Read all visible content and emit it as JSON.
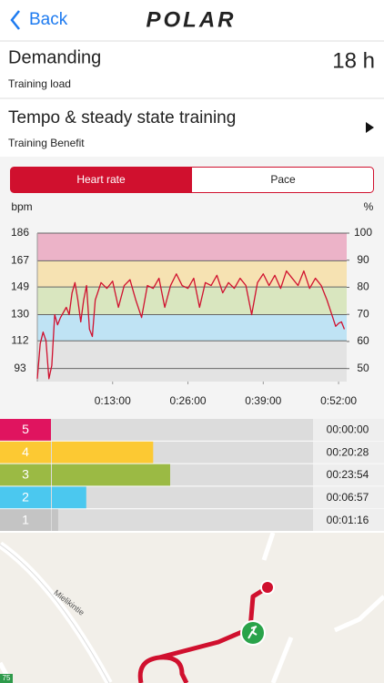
{
  "header": {
    "back": "Back",
    "logo": "POLAR"
  },
  "summary": {
    "load_title": "Demanding",
    "load_value": "18 h",
    "load_label": "Training load",
    "benefit_title": "Tempo & steady state training",
    "benefit_label": "Training Benefit"
  },
  "tabs": [
    "Heart rate",
    "Pace"
  ],
  "chart_data": {
    "type": "line",
    "y_label": "bpm",
    "y2_label": "%",
    "color": "#d0102e",
    "x": [
      0,
      0.5,
      1,
      1.5,
      2,
      2.5,
      3,
      3.5,
      4,
      5,
      5.5,
      6,
      6.5,
      7,
      7.5,
      8,
      8.5,
      9,
      9.5,
      10,
      11,
      12,
      13,
      14,
      15,
      16,
      17,
      18,
      19,
      20,
      21,
      22,
      23,
      24,
      25,
      26,
      27,
      28,
      29,
      30,
      31,
      32,
      33,
      34,
      35,
      36,
      37,
      38,
      39,
      40,
      41,
      42,
      43,
      44,
      45,
      46,
      47,
      48,
      49,
      50,
      51,
      51.5,
      52,
      52.5,
      53
    ],
    "values": [
      86,
      110,
      118,
      112,
      86,
      95,
      130,
      123,
      128,
      135,
      130,
      145,
      152,
      140,
      125,
      140,
      150,
      120,
      115,
      140,
      152,
      148,
      153,
      135,
      150,
      154,
      140,
      128,
      150,
      148,
      155,
      135,
      150,
      158,
      150,
      148,
      155,
      135,
      152,
      150,
      157,
      145,
      152,
      148,
      155,
      150,
      130,
      152,
      158,
      150,
      157,
      148,
      160,
      155,
      150,
      160,
      148,
      155,
      150,
      140,
      128,
      122,
      124,
      125,
      120
    ],
    "xlim": [
      0,
      53.4
    ],
    "xticks": [
      {
        "value": 13,
        "label": "0:13:00"
      },
      {
        "value": 26,
        "label": "0:26:00"
      },
      {
        "value": 39,
        "label": "0:39:00"
      },
      {
        "value": 52,
        "label": "0:52:00"
      }
    ],
    "ylim": [
      84,
      186
    ],
    "yticks": [
      93,
      112,
      130,
      149,
      167,
      186
    ],
    "y2lim": [
      45.2,
      100
    ],
    "y2ticks": [
      50,
      60,
      70,
      80,
      90,
      100
    ],
    "band_colors": [
      "#e3e3e3",
      "#bfe3f4",
      "#d9e6bf",
      "#f6e2b2",
      "#ecb3c8"
    ],
    "grid": true
  },
  "zones": [
    {
      "label": "5",
      "color": "#e0145f",
      "time": "00:00:00"
    },
    {
      "label": "4",
      "color": "#fcc933",
      "time": "00:20:28"
    },
    {
      "label": "3",
      "color": "#9bba44",
      "time": "00:23:54"
    },
    {
      "label": "2",
      "color": "#4bc8ef",
      "time": "00:06:57"
    },
    {
      "label": "1",
      "color": "#c4c4c4",
      "time": "00:01:16"
    }
  ],
  "map": {
    "street": "Mielikintie",
    "sign": "75"
  }
}
